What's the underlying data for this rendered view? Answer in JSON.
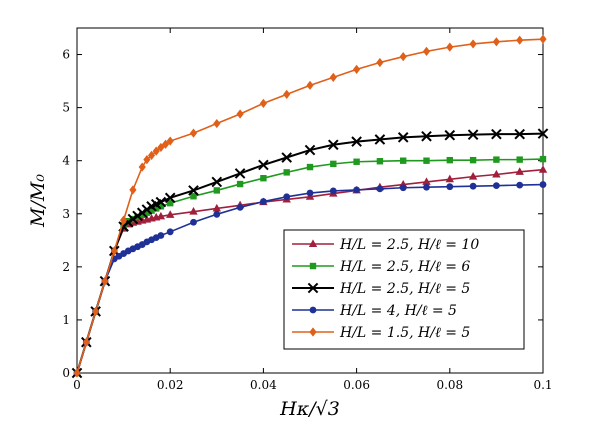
{
  "chart_data": {
    "type": "line",
    "title": "",
    "xlabel": "Hκ/√3",
    "ylabel": "M/M₀",
    "xlim": [
      0,
      0.1
    ],
    "ylim": [
      0,
      6.5
    ],
    "xticks": [
      0,
      0.02,
      0.04,
      0.06,
      0.08,
      0.1
    ],
    "xtick_labels": [
      "0",
      "0.02",
      "0.04",
      "0.06",
      "0.08",
      "0.1"
    ],
    "yticks": [
      0,
      1,
      2,
      3,
      4,
      5,
      6
    ],
    "ytick_labels": [
      "0",
      "1",
      "2",
      "3",
      "4",
      "5",
      "6"
    ],
    "grid": false,
    "legend_position": "lower-right",
    "series": [
      {
        "name": "H/L = 2.5, H/ℓ = 10",
        "color": "#a0203c",
        "marker": "triangle",
        "x": [
          0,
          0.002,
          0.004,
          0.006,
          0.008,
          0.01,
          0.011,
          0.012,
          0.013,
          0.014,
          0.015,
          0.016,
          0.017,
          0.018,
          0.02,
          0.025,
          0.03,
          0.035,
          0.04,
          0.045,
          0.05,
          0.055,
          0.06,
          0.065,
          0.07,
          0.075,
          0.08,
          0.085,
          0.09,
          0.095,
          0.1
        ],
        "y": [
          0,
          0.58,
          1.16,
          1.73,
          2.3,
          2.72,
          2.8,
          2.83,
          2.85,
          2.87,
          2.89,
          2.91,
          2.93,
          2.95,
          2.98,
          3.04,
          3.1,
          3.16,
          3.22,
          3.27,
          3.32,
          3.38,
          3.44,
          3.5,
          3.55,
          3.6,
          3.65,
          3.7,
          3.74,
          3.79,
          3.83
        ]
      },
      {
        "name": "H/L = 2.5, H/ℓ = 6",
        "color": "#1f9a1f",
        "marker": "square",
        "x": [
          0,
          0.002,
          0.004,
          0.006,
          0.008,
          0.01,
          0.011,
          0.012,
          0.013,
          0.014,
          0.015,
          0.016,
          0.017,
          0.018,
          0.02,
          0.025,
          0.03,
          0.035,
          0.04,
          0.045,
          0.05,
          0.055,
          0.06,
          0.065,
          0.07,
          0.075,
          0.08,
          0.085,
          0.09,
          0.095,
          0.1
        ],
        "y": [
          0,
          0.58,
          1.16,
          1.73,
          2.3,
          2.78,
          2.86,
          2.9,
          2.94,
          2.98,
          3.02,
          3.06,
          3.1,
          3.14,
          3.2,
          3.33,
          3.44,
          3.56,
          3.67,
          3.78,
          3.88,
          3.94,
          3.98,
          3.99,
          4.0,
          4.0,
          4.01,
          4.01,
          4.02,
          4.02,
          4.03
        ]
      },
      {
        "name": "H/L = 2.5, H/ℓ = 5",
        "color": "#000000",
        "marker": "x",
        "x": [
          0,
          0.002,
          0.004,
          0.006,
          0.008,
          0.01,
          0.011,
          0.012,
          0.013,
          0.014,
          0.015,
          0.016,
          0.017,
          0.018,
          0.02,
          0.025,
          0.03,
          0.035,
          0.04,
          0.045,
          0.05,
          0.055,
          0.06,
          0.065,
          0.07,
          0.075,
          0.08,
          0.085,
          0.09,
          0.095,
          0.1
        ],
        "y": [
          0,
          0.58,
          1.16,
          1.73,
          2.3,
          2.76,
          2.84,
          2.9,
          2.96,
          3.02,
          3.08,
          3.14,
          3.18,
          3.22,
          3.3,
          3.44,
          3.6,
          3.76,
          3.92,
          4.06,
          4.2,
          4.3,
          4.36,
          4.4,
          4.44,
          4.46,
          4.48,
          4.49,
          4.5,
          4.5,
          4.51
        ]
      },
      {
        "name": "H/L = 4, H/ℓ = 5",
        "color": "#1f3196",
        "marker": "circle",
        "x": [
          0,
          0.002,
          0.004,
          0.006,
          0.008,
          0.009,
          0.01,
          0.011,
          0.012,
          0.013,
          0.014,
          0.015,
          0.016,
          0.017,
          0.018,
          0.02,
          0.025,
          0.03,
          0.035,
          0.04,
          0.045,
          0.05,
          0.055,
          0.06,
          0.065,
          0.07,
          0.075,
          0.08,
          0.085,
          0.09,
          0.095,
          0.1
        ],
        "y": [
          0,
          0.58,
          1.16,
          1.73,
          2.15,
          2.2,
          2.25,
          2.3,
          2.34,
          2.38,
          2.42,
          2.47,
          2.51,
          2.55,
          2.59,
          2.66,
          2.84,
          2.99,
          3.12,
          3.23,
          3.32,
          3.39,
          3.43,
          3.45,
          3.47,
          3.49,
          3.5,
          3.51,
          3.52,
          3.53,
          3.54,
          3.55
        ]
      },
      {
        "name": "H/L = 1.5, H/ℓ = 5",
        "color": "#e0601a",
        "marker": "diamond",
        "x": [
          0,
          0.002,
          0.004,
          0.006,
          0.008,
          0.01,
          0.012,
          0.014,
          0.015,
          0.016,
          0.017,
          0.018,
          0.019,
          0.02,
          0.025,
          0.03,
          0.035,
          0.04,
          0.045,
          0.05,
          0.055,
          0.06,
          0.065,
          0.07,
          0.075,
          0.08,
          0.085,
          0.09,
          0.095,
          0.1
        ],
        "y": [
          0,
          0.58,
          1.16,
          1.73,
          2.3,
          2.88,
          3.45,
          3.88,
          4.02,
          4.1,
          4.18,
          4.25,
          4.31,
          4.37,
          4.52,
          4.7,
          4.88,
          5.08,
          5.25,
          5.42,
          5.57,
          5.72,
          5.85,
          5.96,
          6.06,
          6.14,
          6.2,
          6.24,
          6.27,
          6.29
        ]
      }
    ]
  }
}
